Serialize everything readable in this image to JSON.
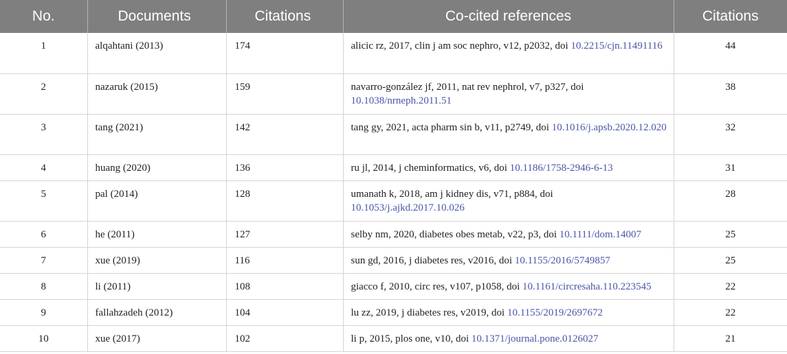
{
  "table": {
    "headers": {
      "no": "No.",
      "documents": "Documents",
      "citations": "Citations",
      "co_cited": "Co-cited references",
      "citations2": "Citations"
    },
    "rows": [
      {
        "no": "1",
        "document": "alqahtani (2013)",
        "citations": "174",
        "ref_text": "alicic rz, 2017, clin j am soc nephro, v12, p2032, doi ",
        "ref_doi": "10.2215/cjn.11491116",
        "ref_citations": "44"
      },
      {
        "no": "2",
        "document": "nazaruk (2015)",
        "citations": "159",
        "ref_text": "navarro-gonzález jf, 2011, nat rev nephrol, v7, p327, doi ",
        "ref_doi": "10.1038/nrneph.2011.51",
        "ref_citations": "38"
      },
      {
        "no": "3",
        "document": "tang (2021)",
        "citations": "142",
        "ref_text": "tang gy, 2021, acta pharm sin b, v11, p2749, doi ",
        "ref_doi": "10.1016/j.apsb.2020.12.020",
        "ref_citations": "32"
      },
      {
        "no": "4",
        "document": "huang (2020)",
        "citations": "136",
        "ref_text": "ru jl, 2014, j cheminformatics, v6, doi ",
        "ref_doi": "10.1186/1758-2946-6-13",
        "ref_citations": "31"
      },
      {
        "no": "5",
        "document": "pal (2014)",
        "citations": "128",
        "ref_text": "umanath k, 2018, am j kidney dis, v71, p884, doi ",
        "ref_doi": "10.1053/j.ajkd.2017.10.026",
        "ref_citations": "28"
      },
      {
        "no": "6",
        "document": "he (2011)",
        "citations": "127",
        "ref_text": "selby nm, 2020, diabetes obes metab, v22, p3, doi ",
        "ref_doi": "10.1111/dom.14007",
        "ref_citations": "25"
      },
      {
        "no": "7",
        "document": "xue (2019)",
        "citations": "116",
        "ref_text": "sun gd, 2016, j diabetes res, v2016, doi ",
        "ref_doi": "10.1155/2016/5749857",
        "ref_citations": "25"
      },
      {
        "no": "8",
        "document": "li (2011)",
        "citations": "108",
        "ref_text": "giacco f, 2010, circ res, v107, p1058, doi ",
        "ref_doi": "10.1161/circresaha.110.223545",
        "ref_citations": "22"
      },
      {
        "no": "9",
        "document": "fallahzadeh (2012)",
        "citations": "104",
        "ref_text": "lu zz, 2019, j diabetes res, v2019, doi ",
        "ref_doi": "10.1155/2019/2697672",
        "ref_citations": "22"
      },
      {
        "no": "10",
        "document": "xue (2017)",
        "citations": "102",
        "ref_text": "li p, 2015, plos one, v10, doi ",
        "ref_doi": "10.1371/journal.pone.0126027",
        "ref_citations": "21"
      }
    ]
  }
}
